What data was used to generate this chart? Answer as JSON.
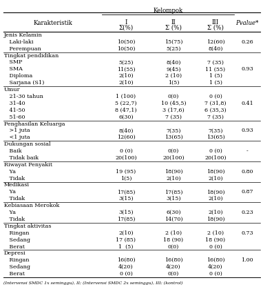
{
  "header_kelompok": "Kelompok",
  "footer": "(Intervensi SMDC 1x seminggu), II; (Intervensi SMDC 2x seminggu), III; (kontrol)",
  "rows": [
    [
      "Jenis Kelamin",
      "",
      "",
      "",
      ""
    ],
    [
      "   Laki-laki",
      "10(50)",
      "15(75)",
      "12(60)",
      "0.26"
    ],
    [
      "   Perempuan",
      "10(50)",
      "5(25)",
      "8(40)",
      ""
    ],
    [
      "Tingkat pendidikan",
      "",
      "",
      "",
      ""
    ],
    [
      "   SMP",
      "5(25)",
      "8(40)",
      "7 (35)",
      ""
    ],
    [
      "   SMA",
      "11(55)",
      "9(45)",
      "11 (55)",
      "0.93"
    ],
    [
      "   Diploma",
      "2(10)",
      "2 (10)",
      "1 (5)",
      ""
    ],
    [
      "   Sarjana (S1)",
      "2(10)",
      "1(5)",
      "1 (5)",
      ""
    ],
    [
      "Umur",
      "",
      "",
      "",
      ""
    ],
    [
      "   21-30 tahun",
      "1 (100)",
      "0(0)",
      "0 (0)",
      ""
    ],
    [
      "   31-40",
      "5 (22,7)",
      "10 (45,5)",
      "7 (31,8)",
      "0.41"
    ],
    [
      "   41-50",
      "8 (47,1)",
      "3 (17,6)",
      "6 (35,3)",
      ""
    ],
    [
      "   51-60",
      "6(30)",
      "7 (35)",
      "7 (35)",
      ""
    ],
    [
      "Penghasilan Keluarga",
      "",
      "",
      "",
      ""
    ],
    [
      "   >1 juta",
      "8(40)",
      "7(35)",
      "7(35)",
      "0.93"
    ],
    [
      "   <1 juta",
      "12(60)",
      "13(65)",
      "13(65)",
      ""
    ],
    [
      "Dukungan sosial",
      "",
      "",
      "",
      ""
    ],
    [
      "   Baik",
      "0 (0)",
      "0(0)",
      "0 (0)",
      "-"
    ],
    [
      "   Tidak baik",
      "20(100)",
      "20(100)",
      "20(100)",
      ""
    ],
    [
      "Riwayat Penyakit",
      "",
      "",
      "",
      ""
    ],
    [
      "   Ya",
      "19 (95)",
      "18(90)",
      "18(90)",
      "0.80"
    ],
    [
      "   Tidak",
      "1(5)",
      "2(10)",
      "2(10)",
      ""
    ],
    [
      "Medikasi",
      "",
      "",
      "",
      ""
    ],
    [
      "   Ya",
      "17(85)",
      "17(85)",
      "18(90)",
      "0.87"
    ],
    [
      "   Tidak",
      "3(15)",
      "3(15)",
      "2(10)",
      ""
    ],
    [
      "Kebiasaan Merokok",
      "",
      "",
      "",
      ""
    ],
    [
      "   Ya",
      "3(15)",
      "6(30)",
      "2(10)",
      "0.23"
    ],
    [
      "   Tidak",
      "17(85)",
      "14(70)",
      "18(90)",
      ""
    ],
    [
      "Tingkat aktivitas",
      "",
      "",
      "",
      ""
    ],
    [
      "   Ringan",
      "2(10)",
      "2 (10)",
      "2 (10)",
      "0.73"
    ],
    [
      "   Sedang",
      "17 (85)",
      "18 (90)",
      "18 (90)",
      ""
    ],
    [
      "   Berat",
      "1  (5)",
      "0(0)",
      "0 (0)",
      ""
    ],
    [
      "Depresi",
      "",
      "",
      "",
      ""
    ],
    [
      "   Ringan",
      "16(80)",
      "16(80)",
      "16(80)",
      "1.00"
    ],
    [
      "   Sedang",
      "4(20)",
      "4(20)",
      "4(20)",
      ""
    ],
    [
      "   Berat",
      "0 (0)",
      "0(0)",
      "0 (0)",
      ""
    ]
  ],
  "section_rows": [
    0,
    3,
    8,
    13,
    16,
    19,
    22,
    25,
    28,
    32
  ],
  "bg_color": "#ffffff",
  "text_color": "#000000",
  "font_size": 5.8,
  "header_font_size": 6.2
}
